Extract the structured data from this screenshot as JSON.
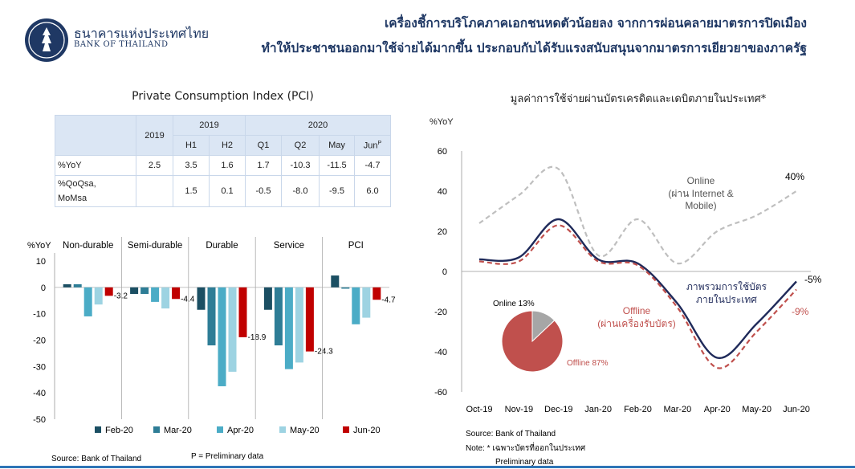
{
  "header": {
    "bank_name_th": "ธนาคารแห่งประเทศไทย",
    "bank_name_en": "BANK OF THAILAND",
    "headline_line1": "เครื่องชี้การบริโภคภาคเอกชนหดตัวน้อยลง จากการผ่อนคลายมาตรการปิดเมือง",
    "headline_line2": "ทำให้ประชาชนออกมาใช้จ่ายได้มากขึ้น ประกอบกับได้รับแรงสนับสนุนจากมาตรการเยียวยาของภาครัฐ"
  },
  "colors": {
    "navy": "#1f3864",
    "accent_blue": "#2e75b6",
    "offline_red": "#c0504d",
    "online_gray": "#bfbfbf"
  },
  "pci_table": {
    "title": "Private Consumption Index (PCI)",
    "year_col": "2019",
    "group_2019": "2019",
    "group_2020": "2020",
    "subcols": [
      "H1",
      "H2",
      "Q1",
      "Q2",
      "May",
      "Jun"
    ],
    "jun_sup": "P",
    "rows": [
      {
        "label": "%YoY",
        "values": [
          "2.5",
          "3.5",
          "1.6",
          "1.7",
          "-10.3",
          "-11.5",
          "-4.7"
        ]
      },
      {
        "label_line1": "%QoQsa,",
        "label_line2": "MoMsa",
        "values": [
          "",
          "1.5",
          "0.1",
          "-0.5",
          "-8.0",
          "-9.5",
          "6.0"
        ]
      }
    ]
  },
  "chart_data": [
    {
      "type": "bar",
      "ylabel": "%YoY",
      "ylim": [
        -50,
        10
      ],
      "yticks": [
        10,
        0,
        -10,
        -20,
        -30,
        -40,
        -50
      ],
      "categories": [
        "Non-durable",
        "Semi-durable",
        "Durable",
        "Service",
        "PCI"
      ],
      "series": [
        {
          "name": "Feb-20",
          "color": "#1b4f63",
          "values": [
            1.2,
            -2.5,
            -8.5,
            -8.5,
            4.5
          ]
        },
        {
          "name": "Mar-20",
          "color": "#2e7d96",
          "values": [
            1.2,
            -2.5,
            -22.0,
            -22.0,
            -0.5
          ]
        },
        {
          "name": "Apr-20",
          "color": "#4bacc6",
          "values": [
            -11.0,
            -5.5,
            -37.5,
            -31.0,
            -14.0
          ]
        },
        {
          "name": "May-20",
          "color": "#9dd3e2",
          "values": [
            -6.5,
            -8.0,
            -32.0,
            -28.5,
            -11.5
          ]
        },
        {
          "name": "Jun-20",
          "color": "#c00000",
          "values": [
            -3.2,
            -4.4,
            -18.9,
            -24.3,
            -4.7
          ]
        }
      ],
      "data_labels": {
        "Non-durable": "-3.2",
        "Semi-durable": "-4.4",
        "Durable": "-18.9",
        "Service": "-24.3",
        "PCI": "-4.7"
      },
      "source": "Source: Bank of Thailand",
      "note": "P = Preliminary data"
    },
    {
      "type": "line",
      "title": "มูลค่าการใช้จ่ายผ่านบัตรเครดิตและเดบิตภายในประเทศ*",
      "ylabel": "%YoY",
      "ylim": [
        -60,
        60
      ],
      "yticks": [
        60,
        40,
        20,
        0,
        -20,
        -40,
        -60
      ],
      "x": [
        "Oct-19",
        "Nov-19",
        "Dec-19",
        "Jan-20",
        "Feb-20",
        "Mar-20",
        "Apr-20",
        "May-20",
        "Jun-20"
      ],
      "series": [
        {
          "name": "Online (ผ่าน Internet & Mobile)",
          "style": "dashed",
          "color": "#bfbfbf",
          "values": [
            24,
            38,
            51,
            8,
            26,
            4,
            20,
            28,
            40
          ]
        },
        {
          "name": "ภาพรวมการใช้บัตรภายในประเทศ",
          "style": "solid",
          "color": "#1f2a5a",
          "values": [
            6,
            7,
            26,
            6,
            4,
            -16,
            -43,
            -26,
            -5
          ]
        },
        {
          "name": "Offline (ผ่านเครื่องรับบัตร)",
          "style": "dashed",
          "color": "#c0504d",
          "values": [
            5,
            5,
            23,
            5,
            3,
            -18,
            -48,
            -30,
            -9
          ]
        }
      ],
      "end_labels": {
        "online": "40%",
        "total": "-5%",
        "offline": "-9%"
      },
      "pie": {
        "slices": [
          {
            "name": "Online",
            "value": 13,
            "label": "Online 13%"
          },
          {
            "name": "Offline",
            "value": 87,
            "label": "Offline 87%"
          }
        ]
      },
      "online_label_line1": "Online",
      "online_label_line2": "(ผ่าน Internet &",
      "online_label_line3": "Mobile)",
      "total_label_line1": "ภาพรวมการใช้บัตร",
      "total_label_line2": "ภายในประเทศ",
      "offline_label_line1": "Offline",
      "offline_label_line2": "(ผ่านเครื่องรับบัตร)",
      "source": "Source: Bank of Thailand",
      "note": "Note: * เฉพาะบัตรที่ออกในประเทศ",
      "note2": "Preliminary data"
    }
  ]
}
